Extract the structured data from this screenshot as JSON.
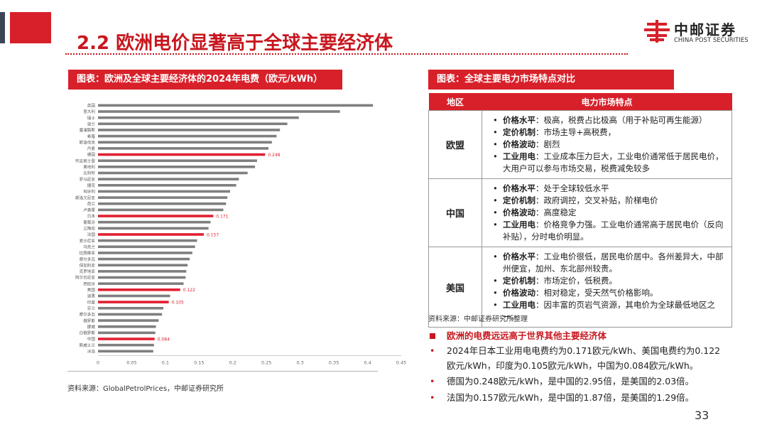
{
  "page": {
    "title": "2.2 欧洲电价显著高于全球主要经济体",
    "page_number": "33",
    "accent_color": "#c8161e",
    "highlight_color": "#e02030"
  },
  "logo": {
    "cn": "中邮证券",
    "en": "CHINA POST SECURITIES"
  },
  "left_panel": {
    "header": "图表：欧洲及全球主要经济体的2024年电费（欧元/kWh）",
    "source": "资料来源：GlobalPetrolPrices，中邮证券研究所"
  },
  "right_panel": {
    "header": "图表：全球主要电力市场特点对比",
    "source": "资料来源：中邮证券研究所整理",
    "table": {
      "headers": [
        "地区",
        "电力市场特点"
      ],
      "rows": [
        {
          "region": "欧盟",
          "items": [
            {
              "k": "价格水平",
              "v": "：极高，税费占比极高（用于补贴可再生能源）"
            },
            {
              "k": "定价机制",
              "v": "：市场主导+高税费，"
            },
            {
              "k": "价格波动",
              "v": "：剧烈"
            },
            {
              "k": "工业用电",
              "v": "：工业成本压力巨大，工业电价通常低于居民电价，大用户可以参与市场交易，税费减免较多"
            }
          ]
        },
        {
          "region": "中国",
          "items": [
            {
              "k": "价格水平",
              "v": "：处于全球较低水平"
            },
            {
              "k": "定价机制",
              "v": "：政府调控，交叉补贴，阶梯电价"
            },
            {
              "k": "价格波动",
              "v": "：高度稳定"
            },
            {
              "k": "工业用电",
              "v": "：价格竞争力强。工业电价通常高于居民电价（反向补贴），分时电价明显。"
            }
          ]
        },
        {
          "region": "美国",
          "items": [
            {
              "k": "价格水平",
              "v": "：工业电价很低，居民电价居中。各州差异大，中部州便宜，加州、东北部州较贵。"
            },
            {
              "k": "定价机制",
              "v": "：市场定价，低税费。"
            },
            {
              "k": "价格波动",
              "v": "：相对稳定，受天然气价格影响。"
            },
            {
              "k": "工业用电",
              "v": "：因丰富的页岩气资源，其电价为全球最低地区之一。"
            }
          ]
        }
      ]
    }
  },
  "summary": {
    "heading": "欧洲的电费远远高于世界其他主要经济体",
    "points": [
      "2024年日本工业用电电费约为0.171欧元/kWh、美国电费约为0.122欧元/kWh，印度为0.105欧元/kWh，中国为0.084欧元/kWh。",
      "德国为0.248欧元/kWh，是中国的2.95倍，是美国的2.03倍。",
      "法国为0.157欧元/kWh，是中国的1.87倍，是美国的1.29倍。"
    ]
  },
  "chart_data": {
    "type": "bar",
    "orientation": "horizontal",
    "title": "",
    "xlabel": "",
    "ylabel": "",
    "xlim": [
      0,
      0.45
    ],
    "x_ticks": [
      "0",
      "0.05",
      "0.1",
      "0.15",
      "0.2",
      "0.25",
      "0.3",
      "0.35",
      "0.4",
      "0.45"
    ],
    "grid": false,
    "bar_color": "#7f7f7f",
    "categories": [
      "英国",
      "意大利",
      "瑞士",
      "波兰",
      "塞浦路斯",
      "希腊",
      "斯洛伐克",
      "丹麦",
      "德国",
      "列支敦士登",
      "奥地利",
      "比利时",
      "罗马尼亚",
      "捷克",
      "匈牙利",
      "斯洛文尼亚",
      "荷兰",
      "卢森堡",
      "日本",
      "葡萄牙",
      "立陶宛",
      "法国",
      "爱沙尼亚",
      "乌克兰",
      "拉脱维亚",
      "摩尔多瓦",
      "保加利亚",
      "克罗地亚",
      "阿尔巴尼亚",
      "西班牙",
      "美国",
      "波黑",
      "印度",
      "芬兰",
      "摩尔多瓦",
      "俄罗斯",
      "挪威",
      "白俄罗斯",
      "中国",
      "斯威士兰",
      "冰岛"
    ],
    "values": [
      0.408,
      0.359,
      0.298,
      0.281,
      0.27,
      0.265,
      0.258,
      0.253,
      0.248,
      0.236,
      0.233,
      0.222,
      0.209,
      0.205,
      0.196,
      0.192,
      0.19,
      0.186,
      0.171,
      0.167,
      0.164,
      0.157,
      0.147,
      0.144,
      0.14,
      0.136,
      0.133,
      0.131,
      0.13,
      0.127,
      0.122,
      0.107,
      0.105,
      0.097,
      0.095,
      0.09,
      0.086,
      0.085,
      0.084,
      0.083,
      0.082
    ],
    "highlighted": [
      {
        "category": "德国",
        "label": "0.248"
      },
      {
        "category": "日本",
        "label": "0.171"
      },
      {
        "category": "法国",
        "label": "0.157"
      },
      {
        "category": "美国",
        "label": "0.122"
      },
      {
        "category": "印度",
        "label": "0.105"
      },
      {
        "category": "中国",
        "label": "0.084"
      }
    ]
  }
}
